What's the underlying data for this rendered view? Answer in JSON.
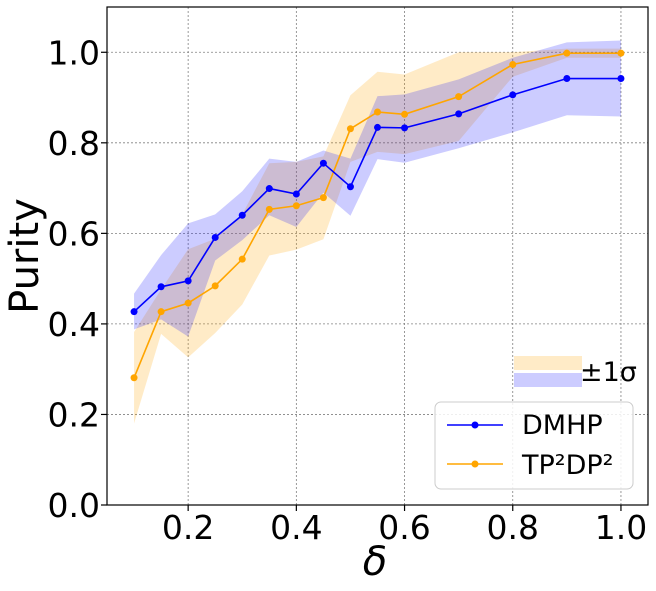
{
  "chart_data": {
    "type": "line",
    "title": "",
    "xlabel": "δ",
    "ylabel": "Purity",
    "xlim": [
      0.05,
      1.05
    ],
    "ylim": [
      0.0,
      1.1
    ],
    "grid": true,
    "xticks": [
      0.2,
      0.4,
      0.6,
      0.8,
      1.0
    ],
    "xtick_labels": [
      "0.2",
      "0.4",
      "0.6",
      "0.8",
      "1.0"
    ],
    "yticks": [
      0.0,
      0.2,
      0.4,
      0.6,
      0.8,
      1.0
    ],
    "ytick_labels": [
      "0.0",
      "0.2",
      "0.4",
      "0.6",
      "0.8",
      "1.0"
    ],
    "x": [
      0.1,
      0.15,
      0.2,
      0.25,
      0.3,
      0.35,
      0.4,
      0.45,
      0.5,
      0.55,
      0.6,
      0.7,
      0.8,
      0.9,
      1.0
    ],
    "series": [
      {
        "name": "DMHP",
        "color": "#0000ff",
        "band_color": "#0000ff",
        "values": [
          0.427,
          0.482,
          0.495,
          0.591,
          0.64,
          0.699,
          0.687,
          0.755,
          0.703,
          0.834,
          0.833,
          0.864,
          0.906,
          0.942,
          0.942
        ],
        "lower": [
          0.388,
          0.41,
          0.372,
          0.54,
          0.585,
          0.64,
          0.614,
          0.69,
          0.639,
          0.764,
          0.756,
          0.788,
          0.823,
          0.861,
          0.858
        ],
        "upper": [
          0.467,
          0.552,
          0.622,
          0.642,
          0.693,
          0.765,
          0.758,
          0.783,
          0.765,
          0.903,
          0.907,
          0.94,
          0.988,
          1.022,
          1.026
        ]
      },
      {
        "name": "TP²DP²",
        "color": "#ffa500",
        "band_color": "#ffa500",
        "values": [
          0.281,
          0.427,
          0.446,
          0.484,
          0.543,
          0.653,
          0.661,
          0.679,
          0.831,
          0.868,
          0.863,
          0.902,
          0.973,
          0.998,
          0.998
        ],
        "lower": [
          0.18,
          0.378,
          0.326,
          0.38,
          0.443,
          0.551,
          0.564,
          0.587,
          0.758,
          0.78,
          0.775,
          0.804,
          0.946,
          0.988,
          0.988
        ],
        "upper": [
          0.382,
          0.476,
          0.565,
          0.588,
          0.642,
          0.755,
          0.758,
          0.77,
          0.905,
          0.957,
          0.951,
          1.0,
          1.0,
          1.008,
          1.008
        ]
      }
    ],
    "legend": {
      "placement": "lower-right",
      "entries": [
        "DMHP",
        "TP²DP²"
      ],
      "band_label": "±1σ"
    }
  }
}
